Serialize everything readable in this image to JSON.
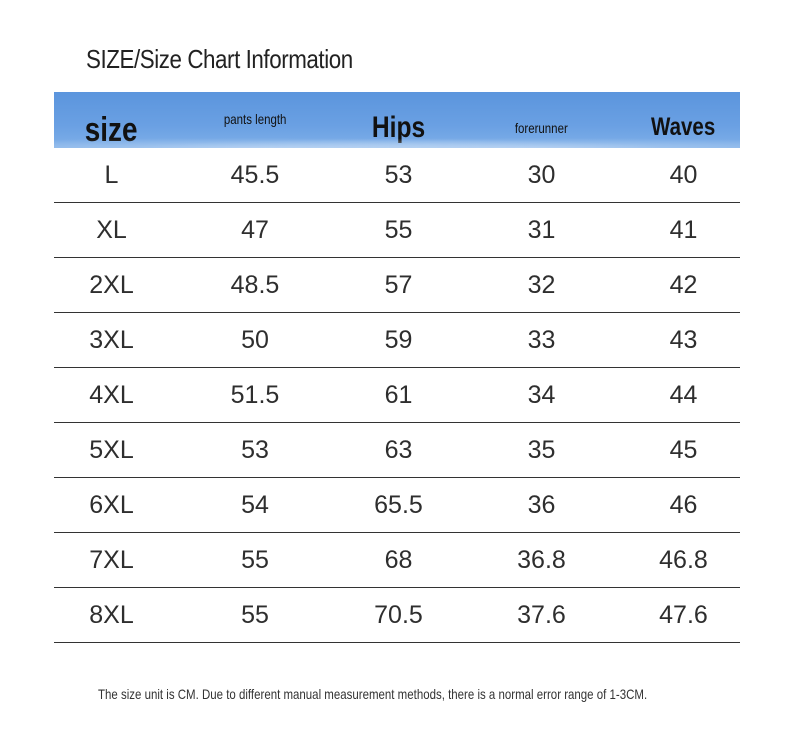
{
  "title": "SIZE/Size Chart Information",
  "table": {
    "headers": [
      "size",
      "pants length",
      "Hips",
      "forerunner",
      "Waves"
    ],
    "rows": [
      [
        "L",
        "45.5",
        "53",
        "30",
        "40"
      ],
      [
        "XL",
        "47",
        "55",
        "31",
        "41"
      ],
      [
        "2XL",
        "48.5",
        "57",
        "32",
        "42"
      ],
      [
        "3XL",
        "50",
        "59",
        "33",
        "43"
      ],
      [
        "4XL",
        "51.5",
        "61",
        "34",
        "44"
      ],
      [
        "5XL",
        "53",
        "63",
        "35",
        "45"
      ],
      [
        "6XL",
        "54",
        "65.5",
        "36",
        "46"
      ],
      [
        "7XL",
        "55",
        "68",
        "36.8",
        "46.8"
      ],
      [
        "8XL",
        "55",
        "70.5",
        "37.6",
        "47.6"
      ]
    ]
  },
  "footnote": "The size unit is CM. Due to different manual measurement methods, there is a normal error range of 1-3CM.",
  "colors": {
    "header_background": "#5b95dd",
    "text": "#2e2e2e",
    "row_divider": "#333333"
  }
}
